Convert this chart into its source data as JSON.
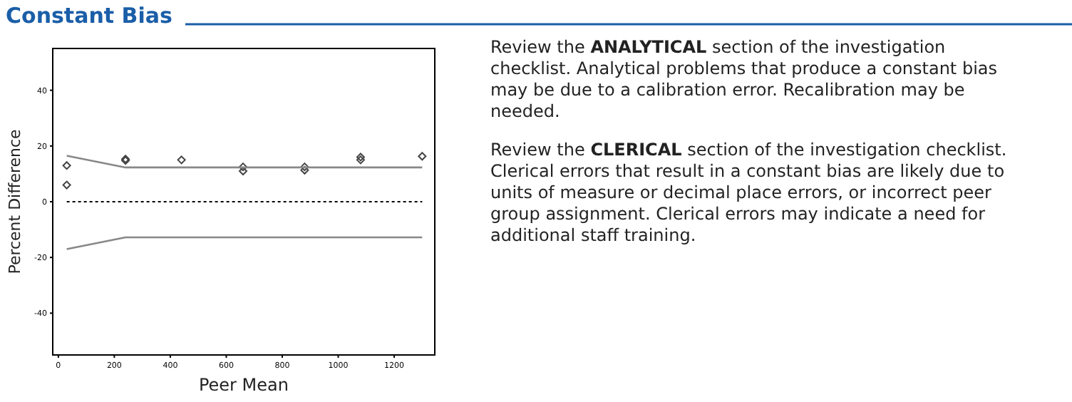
{
  "chart_data": {
    "type": "scatter",
    "title": "Constant Bias",
    "xlabel": "Peer Mean",
    "ylabel": "Percent Difference",
    "xlim": [
      -20,
      1345
    ],
    "ylim": [
      -55,
      55
    ],
    "xticks": [
      0,
      200,
      400,
      600,
      800,
      1000,
      1200
    ],
    "yticks": [
      -40,
      -20,
      0,
      20,
      40
    ],
    "grid": false,
    "series": [
      {
        "color": "#444444",
        "marker": "diamond",
        "x": [
          30,
          30,
          240,
          240,
          440,
          660,
          660,
          880,
          880,
          1080,
          1080,
          1300
        ],
        "values": [
          13,
          6,
          15.3,
          14.8,
          15,
          12.5,
          11,
          12.5,
          11.3,
          16,
          15,
          16.3
        ]
      },
      {
        "type": "line",
        "color": "#888888",
        "marker": "none",
        "line_style": "solid",
        "x": [
          30,
          240,
          1300
        ],
        "values": [
          16.5,
          12.3,
          12.3
        ]
      },
      {
        "type": "line",
        "color": "#888888",
        "marker": "none",
        "line_style": "solid",
        "x": [
          30,
          240,
          1300
        ],
        "values": [
          -17,
          -12.8,
          -12.8
        ]
      }
    ],
    "ref_lines": [
      {
        "axis": "y",
        "value": 0,
        "line_style": "dotted",
        "color": "#000000"
      }
    ],
    "annotations": [
      "Review the ANALYTICAL section of the investigation checklist. Analytical problems that produce a constant bias may be due to a calibration error. Recalibration may be needed.",
      "Review the CLERICAL section of the investigation checklist. Clerical errors that result in a constant bias are likely due to units of measure or decimal place errors, or incorrect peer group assignment. Clerical errors may indicate a need for additional staff training."
    ]
  }
}
